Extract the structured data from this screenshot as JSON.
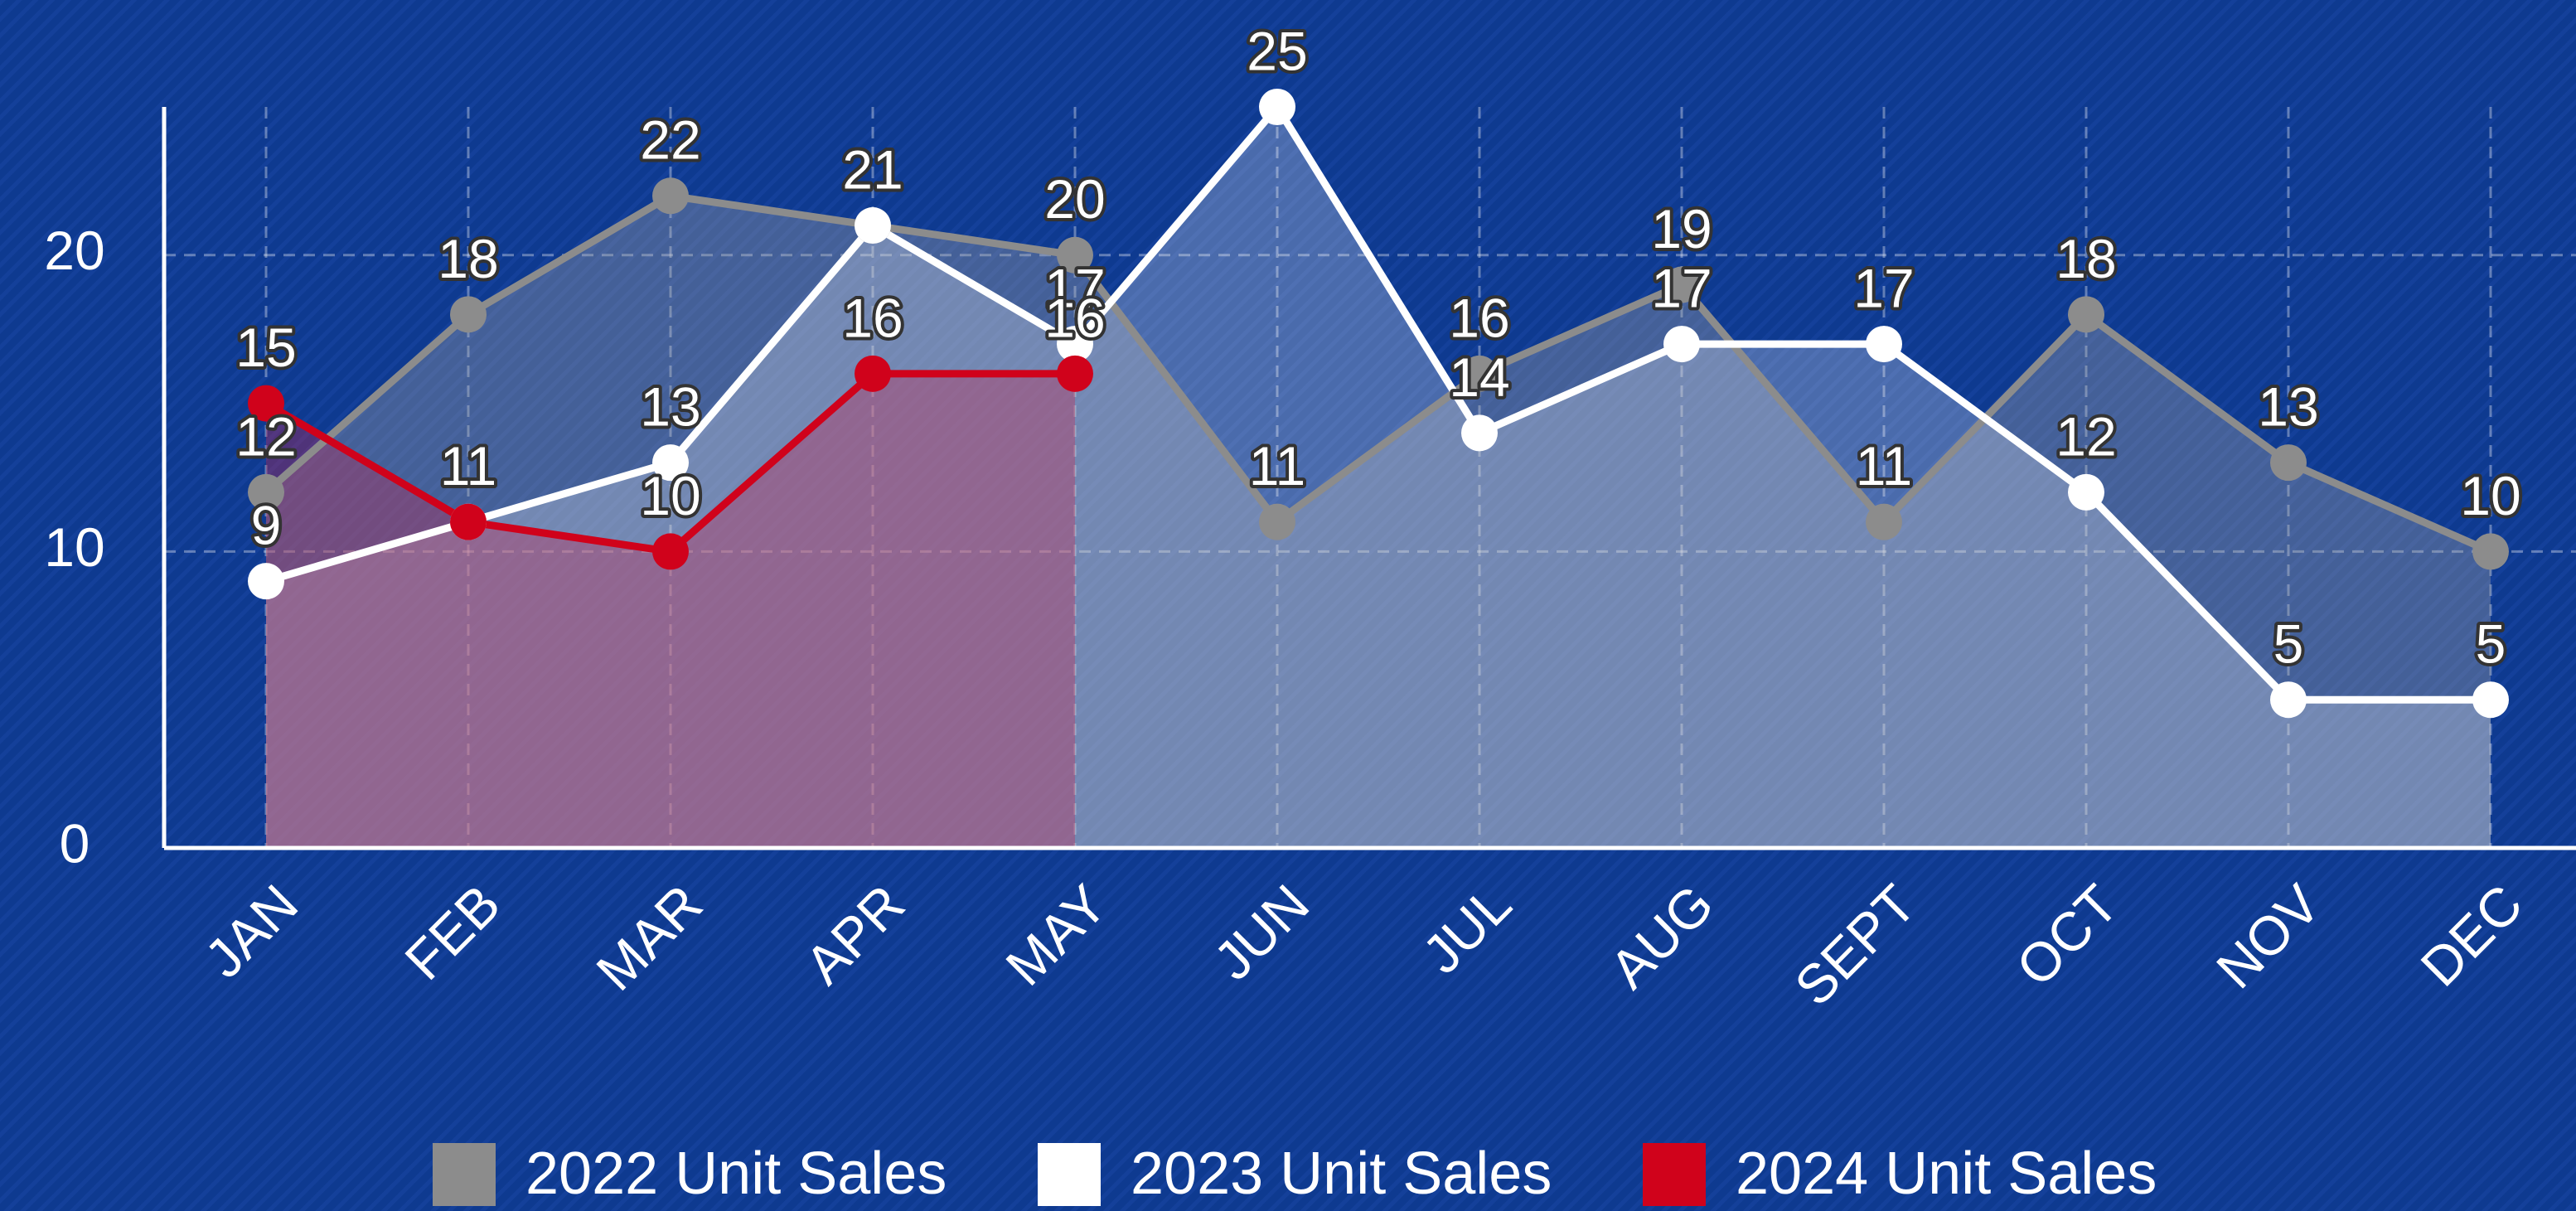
{
  "chart_data": {
    "type": "line",
    "categories": [
      "JAN",
      "FEB",
      "MAR",
      "APR",
      "MAY",
      "JUN",
      "JUL",
      "AUG",
      "SEPT",
      "OCT",
      "NOV",
      "DEC"
    ],
    "series": [
      {
        "name": "2022 Unit Sales",
        "color": "#8c8c8c",
        "values": [
          12,
          18,
          22,
          21,
          20,
          11,
          16,
          19,
          11,
          18,
          13,
          10
        ]
      },
      {
        "name": "2023 Unit Sales",
        "color": "#ffffff",
        "values": [
          9,
          11,
          13,
          21,
          17,
          25,
          14,
          17,
          17,
          12,
          5,
          5
        ]
      },
      {
        "name": "2024 Unit Sales",
        "color": "#d0021b",
        "values": [
          15,
          11,
          10,
          16,
          16,
          null,
          null,
          null,
          null,
          null,
          null,
          null
        ]
      }
    ],
    "ylim": [
      0,
      25
    ],
    "yticks": [
      0,
      10,
      20
    ],
    "grid": true,
    "legend": "bottom"
  }
}
